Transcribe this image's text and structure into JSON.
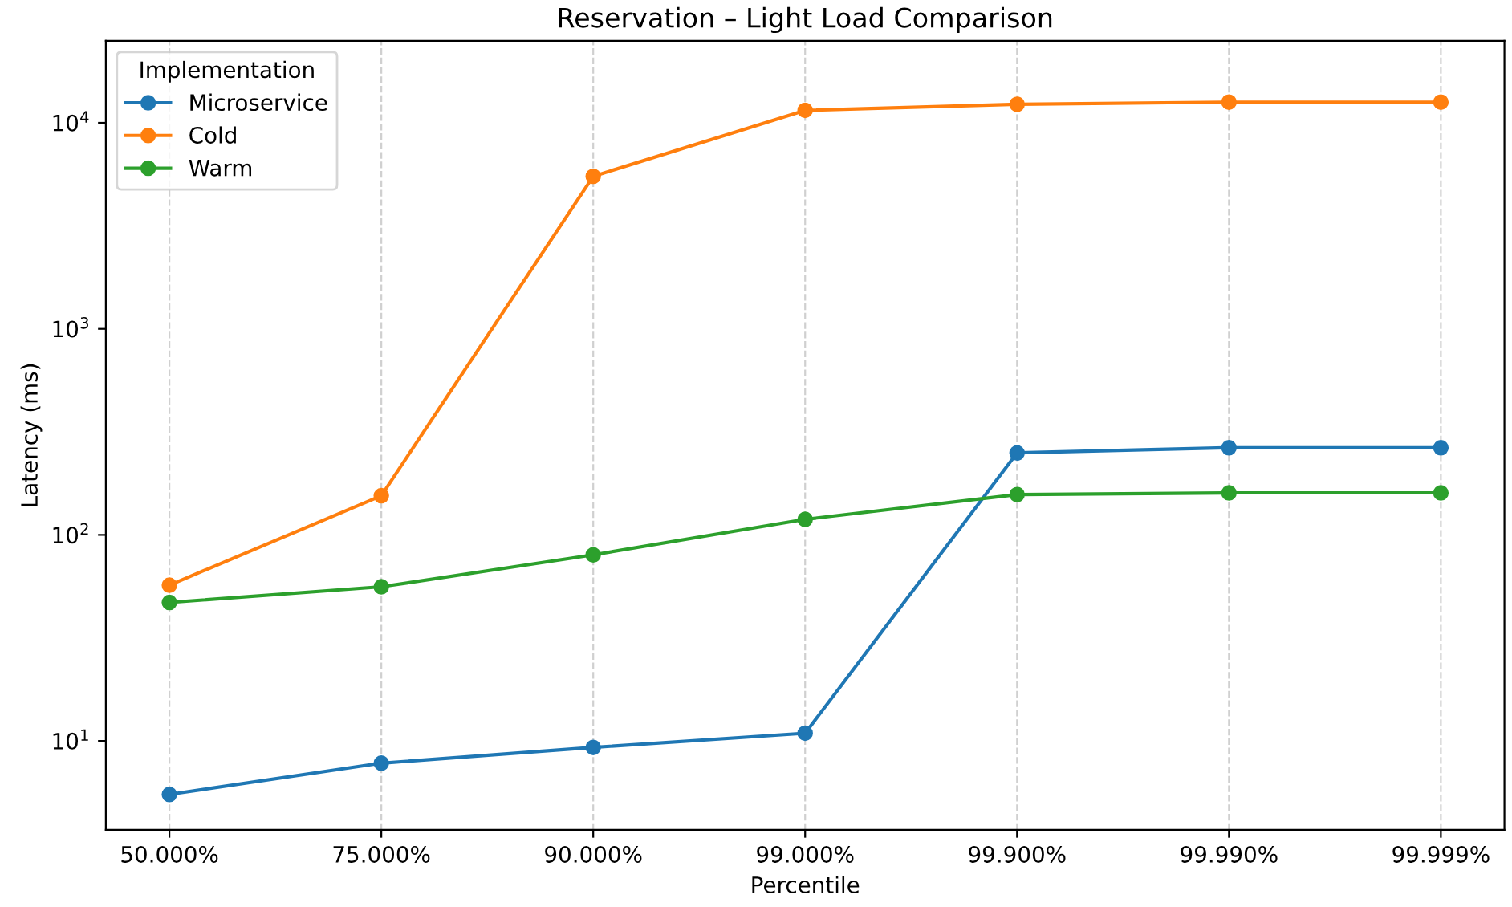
{
  "chart_data": {
    "type": "line",
    "title": "Reservation – Light Load Comparison",
    "xlabel": "Percentile",
    "ylabel": "Latency (ms)",
    "legend_title": "Implementation",
    "legend": "top left",
    "grid": "x",
    "log": "y",
    "marker": "circle",
    "line_style": "solid",
    "categories": [
      "50.000%",
      "75.000%",
      "90.000%",
      "99.000%",
      "99.900%",
      "99.990%",
      "99.999%"
    ],
    "ylim": [
      3.7,
      25000
    ],
    "yticks": [
      {
        "value": 10,
        "label": "10$^{1}$"
      },
      {
        "value": 100,
        "label": "10$^{2}$"
      },
      {
        "value": 1000,
        "label": "10$^{3}$"
      },
      {
        "value": 10000,
        "label": "10$^{4}$"
      }
    ],
    "series": [
      {
        "name": "Microservice",
        "color": "#1f77b4",
        "values": [
          5.5,
          7.8,
          9.3,
          10.9,
          250,
          265,
          265
        ]
      },
      {
        "name": "Cold",
        "color": "#ff7f0e",
        "values": [
          57,
          155,
          5500,
          11500,
          12300,
          12600,
          12600
        ]
      },
      {
        "name": "Warm",
        "color": "#2ca02c",
        "values": [
          47,
          56,
          80,
          119,
          157,
          160,
          160
        ]
      }
    ]
  }
}
